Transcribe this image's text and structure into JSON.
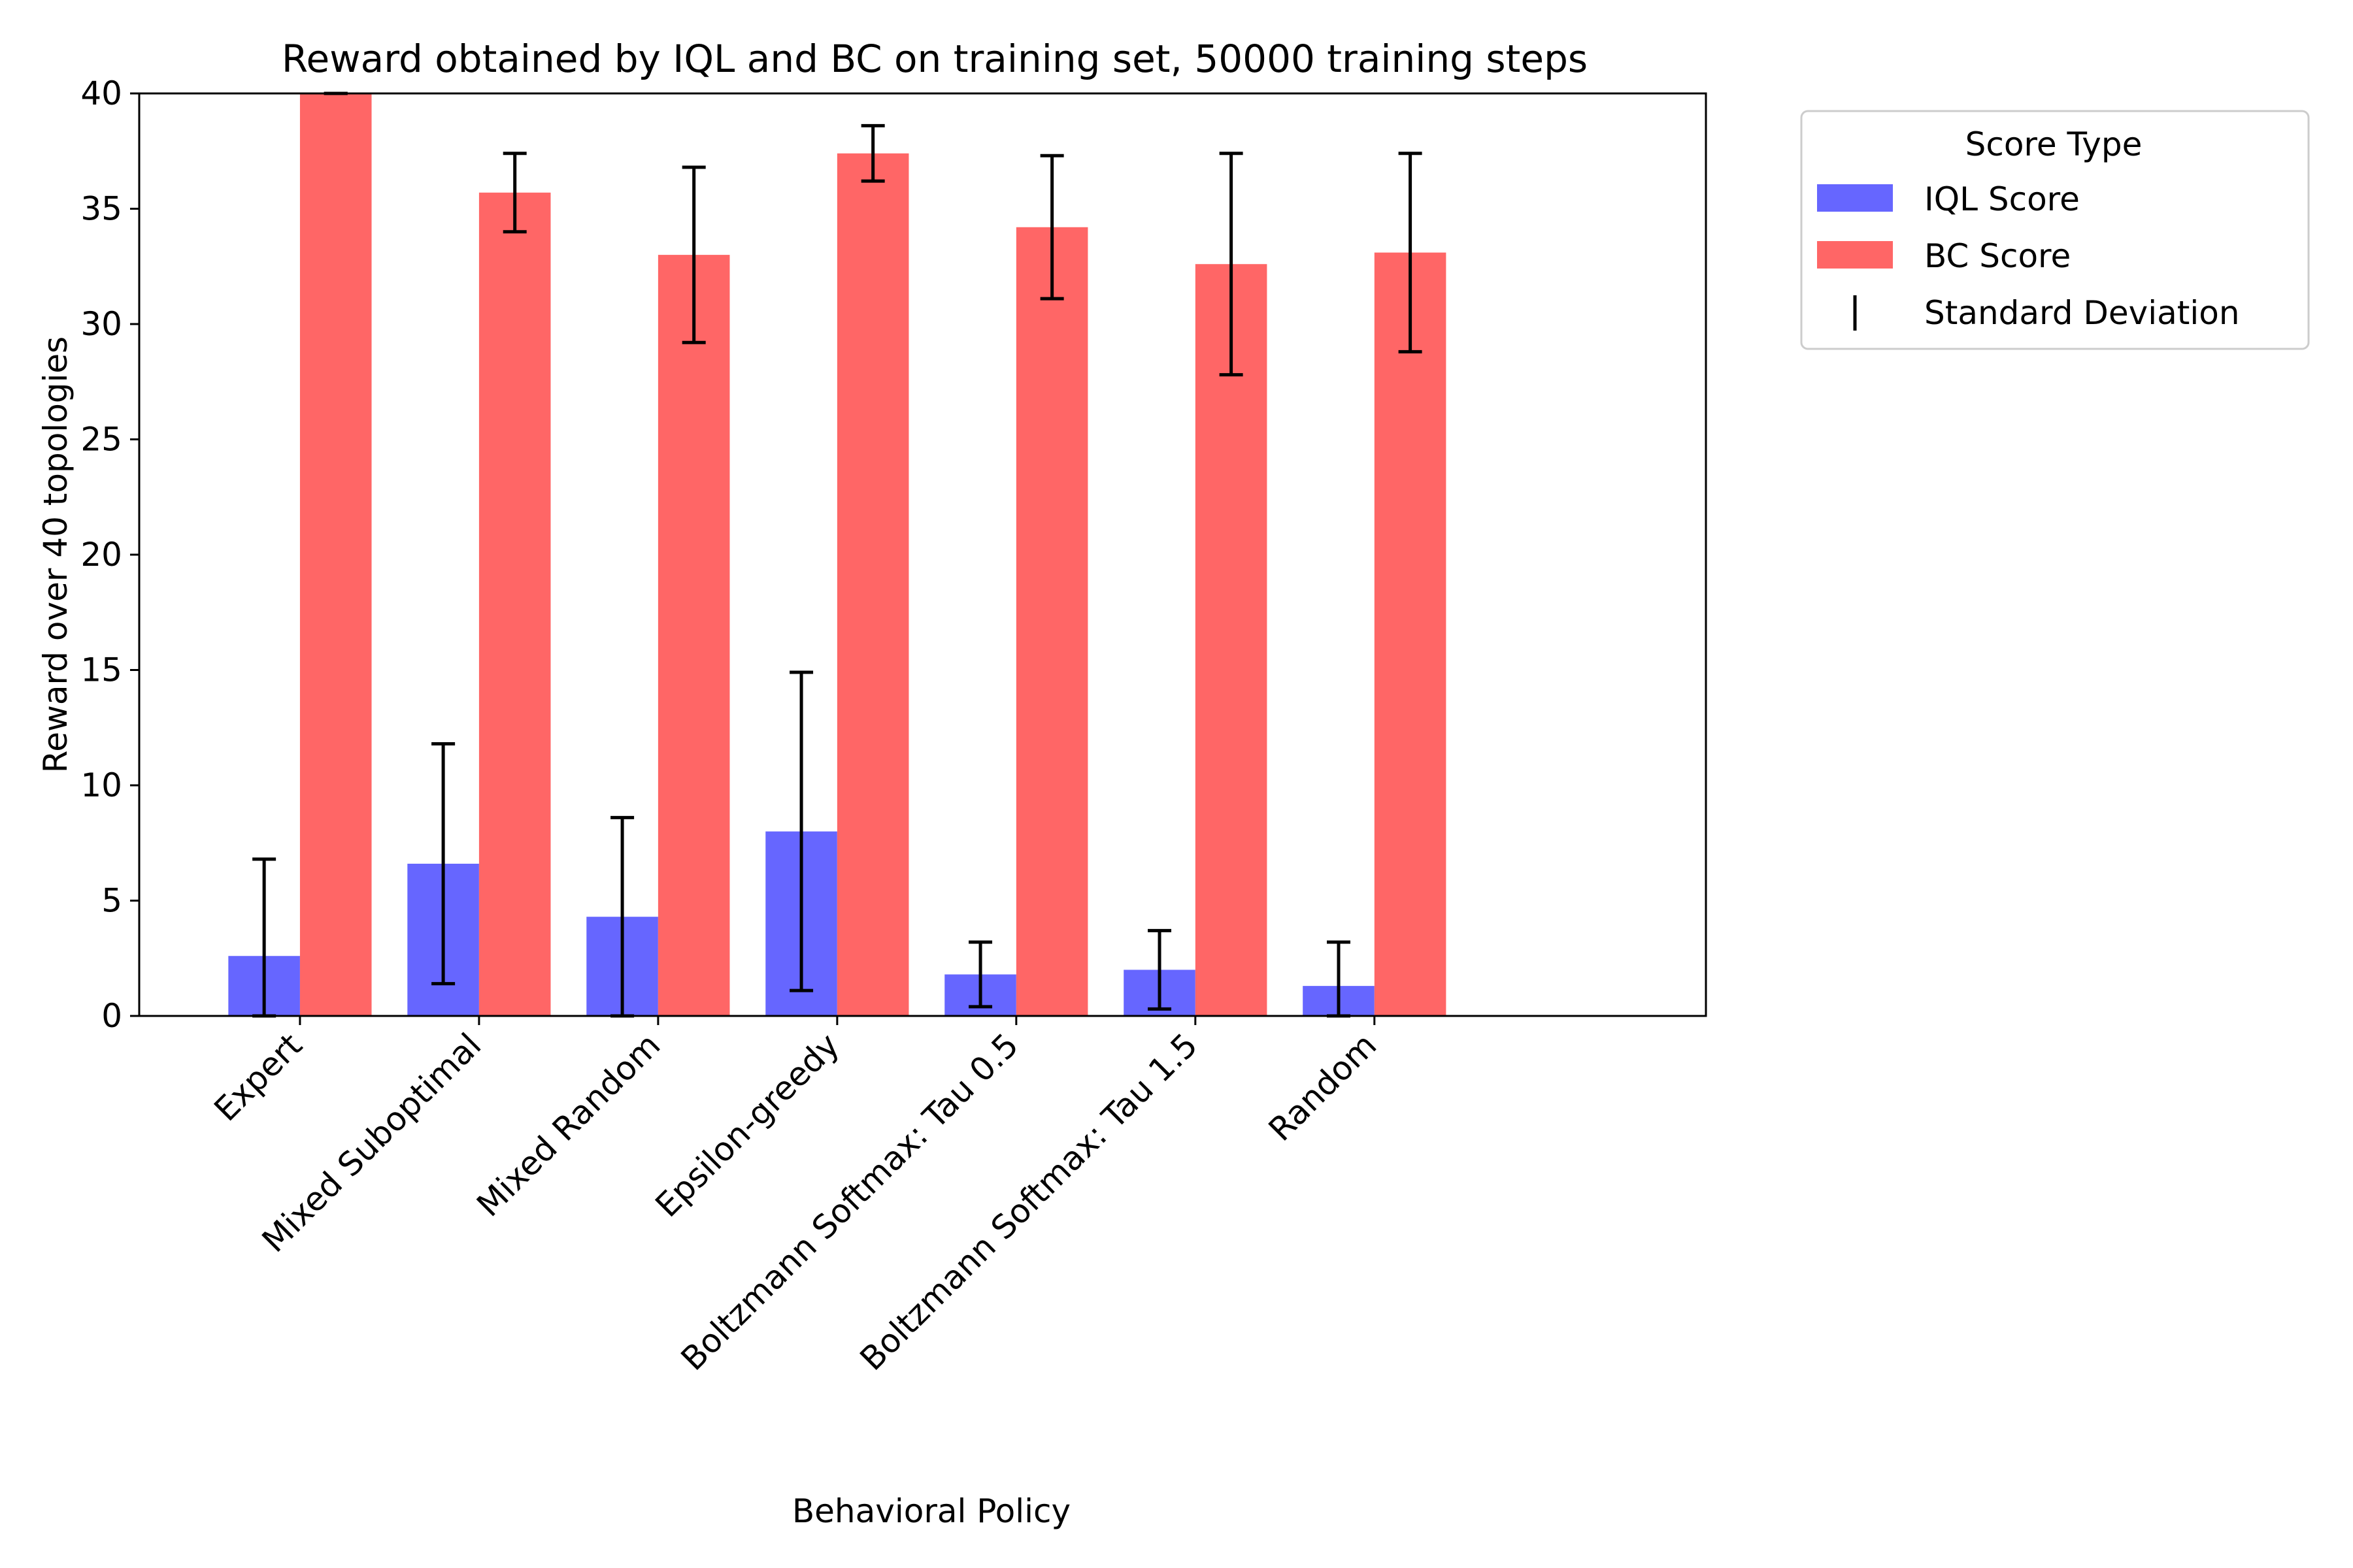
{
  "chart_data": {
    "type": "bar",
    "title": "Reward obtained by IQL and BC on training set, 50000 training steps",
    "xlabel": "Behavioral Policy",
    "ylabel": "Reward over 40 topologies",
    "ylim": [
      0,
      40
    ],
    "yticks": [
      0,
      5,
      10,
      15,
      20,
      25,
      30,
      35,
      40
    ],
    "categories": [
      "Expert",
      "Mixed Suboptimal",
      "Mixed Random",
      "Epsilon-greedy",
      "Boltzmann Softmax: Tau 0.5",
      "Boltzmann Softmax: Tau 1.5",
      "Random"
    ],
    "series": [
      {
        "name": "IQL Score",
        "color": "#6666ff",
        "values": [
          2.6,
          6.6,
          4.3,
          8.0,
          1.8,
          2.0,
          1.3
        ],
        "std": [
          4.2,
          5.2,
          4.3,
          6.9,
          1.4,
          1.7,
          1.9
        ]
      },
      {
        "name": "BC Score",
        "color": "#ff6666",
        "values": [
          40.0,
          35.7,
          33.0,
          37.4,
          34.2,
          32.6,
          33.1
        ],
        "std": [
          0.0,
          1.7,
          3.8,
          1.2,
          3.1,
          4.8,
          4.3
        ]
      }
    ],
    "legend": {
      "title": "Score Type",
      "entries": [
        "IQL Score",
        "BC Score",
        "Standard Deviation"
      ],
      "placement": "outside-right-top"
    },
    "grid": false
  }
}
